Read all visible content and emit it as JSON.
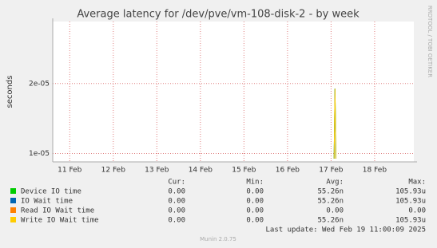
{
  "chart_data": {
    "type": "line",
    "title": "Average latency for /dev/pve/vm-108-disk-2 - by week",
    "y_label": "seconds",
    "side_text": "RRDTOOL / TOBI OETIKER",
    "log_scale": true,
    "grid": true,
    "x": [
      17.07,
      17.09,
      17.11
    ],
    "xlim": [
      10.61,
      18.9
    ],
    "xticks": [
      {
        "value": 11,
        "label": "11 Feb"
      },
      {
        "value": 12,
        "label": "12 Feb"
      },
      {
        "value": 13,
        "label": "13 Feb"
      },
      {
        "value": 14,
        "label": "14 Feb"
      },
      {
        "value": 15,
        "label": "15 Feb"
      },
      {
        "value": 16,
        "label": "16 Feb"
      },
      {
        "value": 17,
        "label": "17 Feb"
      },
      {
        "value": 18,
        "label": "18 Feb"
      }
    ],
    "ylim": [
      9.2e-06,
      3.7e-05
    ],
    "yticks": [
      {
        "value": 1e-05,
        "label": "1e-05"
      },
      {
        "value": 2e-05,
        "label": "2e-05"
      }
    ],
    "series": [
      {
        "name": "Device IO time",
        "color": "#00cc00",
        "values": [
          9.5e-06,
          1.9e-05,
          9.5e-06
        ]
      },
      {
        "name": "IO Wait time",
        "color": "#0066b3",
        "values": [
          9.5e-06,
          1.9e-05,
          9.5e-06
        ]
      },
      {
        "name": "Read IO Wait time",
        "color": "#ff8000",
        "values": [
          null,
          null,
          null
        ]
      },
      {
        "name": "Write IO Wait time",
        "color": "#ffcc00",
        "values": [
          9.5e-06,
          1.9e-05,
          9.5e-06
        ]
      }
    ],
    "legend_headers": [
      "Cur:",
      "Min:",
      "Avg:",
      "Max:"
    ],
    "legend_rows": [
      [
        "0.00",
        "0.00",
        "55.26n",
        "105.93u"
      ],
      [
        "0.00",
        "0.00",
        "55.26n",
        "105.93u"
      ],
      [
        "0.00",
        "0.00",
        "0.00",
        "0.00"
      ],
      [
        "0.00",
        "0.00",
        "55.26n",
        "105.93u"
      ]
    ],
    "last_update": "Last update: Wed Feb 19 11:00:09 2025",
    "footer": "Munin 2.0.75"
  }
}
